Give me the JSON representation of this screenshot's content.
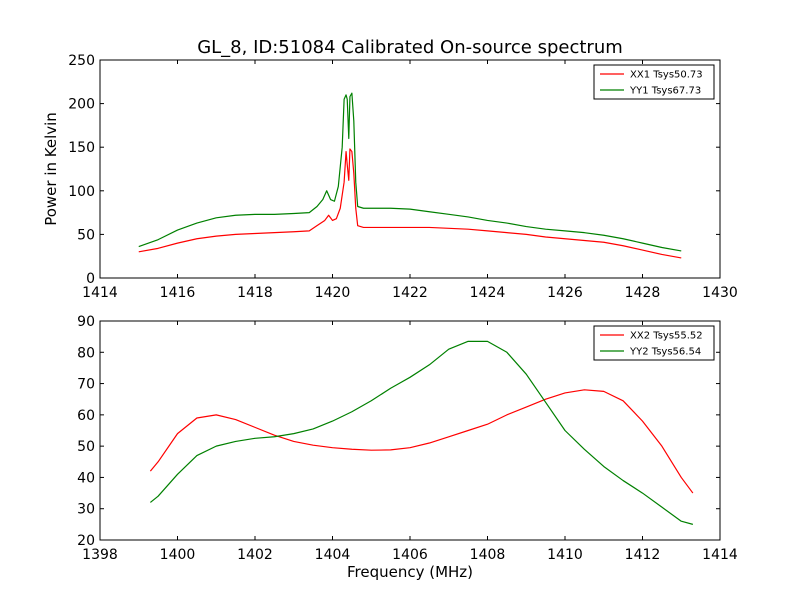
{
  "figure": {
    "title": "GL_8, ID:51084 Calibrated On-source spectrum",
    "xlabel": "Frequency (MHz)"
  },
  "chart_data": [
    {
      "type": "line",
      "title": "GL_8, ID:51084 Calibrated On-source spectrum",
      "xlabel": "",
      "ylabel": "Power in Kelvin",
      "xlim": [
        1414,
        1430
      ],
      "ylim": [
        0,
        250
      ],
      "xticks": [
        1414,
        1416,
        1418,
        1420,
        1422,
        1424,
        1426,
        1428,
        1430
      ],
      "yticks": [
        0,
        50,
        100,
        150,
        200,
        250
      ],
      "grid": false,
      "legend_position": "top-right",
      "series": [
        {
          "name": "XX1 Tsys50.73",
          "color": "#ff0000",
          "points": [
            [
              1415.0,
              30
            ],
            [
              1415.5,
              34
            ],
            [
              1416.0,
              40
            ],
            [
              1416.5,
              45
            ],
            [
              1417.0,
              48
            ],
            [
              1417.5,
              50
            ],
            [
              1418.0,
              51
            ],
            [
              1418.5,
              52
            ],
            [
              1419.0,
              53
            ],
            [
              1419.4,
              54
            ],
            [
              1419.6,
              60
            ],
            [
              1419.8,
              66
            ],
            [
              1419.9,
              72
            ],
            [
              1420.0,
              66
            ],
            [
              1420.1,
              68
            ],
            [
              1420.2,
              80
            ],
            [
              1420.3,
              110
            ],
            [
              1420.35,
              145
            ],
            [
              1420.38,
              130
            ],
            [
              1420.42,
              112
            ],
            [
              1420.45,
              148
            ],
            [
              1420.5,
              145
            ],
            [
              1420.55,
              120
            ],
            [
              1420.6,
              80
            ],
            [
              1420.65,
              60
            ],
            [
              1420.8,
              58
            ],
            [
              1421.0,
              58
            ],
            [
              1421.5,
              58
            ],
            [
              1422.0,
              58
            ],
            [
              1422.5,
              58
            ],
            [
              1423.0,
              57
            ],
            [
              1423.5,
              56
            ],
            [
              1424.0,
              54
            ],
            [
              1424.5,
              52
            ],
            [
              1425.0,
              50
            ],
            [
              1425.5,
              47
            ],
            [
              1426.0,
              45
            ],
            [
              1426.5,
              43
            ],
            [
              1427.0,
              41
            ],
            [
              1427.5,
              37
            ],
            [
              1428.0,
              32
            ],
            [
              1428.5,
              27
            ],
            [
              1429.0,
              23
            ]
          ]
        },
        {
          "name": "YY1 Tsys67.73",
          "color": "#008000",
          "points": [
            [
              1415.0,
              36
            ],
            [
              1415.5,
              44
            ],
            [
              1416.0,
              55
            ],
            [
              1416.5,
              63
            ],
            [
              1417.0,
              69
            ],
            [
              1417.5,
              72
            ],
            [
              1418.0,
              73
            ],
            [
              1418.5,
              73
            ],
            [
              1419.0,
              74
            ],
            [
              1419.4,
              75
            ],
            [
              1419.6,
              82
            ],
            [
              1419.75,
              90
            ],
            [
              1419.85,
              100
            ],
            [
              1419.95,
              90
            ],
            [
              1420.05,
              88
            ],
            [
              1420.15,
              105
            ],
            [
              1420.25,
              150
            ],
            [
              1420.3,
              205
            ],
            [
              1420.35,
              210
            ],
            [
              1420.38,
              205
            ],
            [
              1420.42,
              160
            ],
            [
              1420.45,
              208
            ],
            [
              1420.5,
              212
            ],
            [
              1420.55,
              180
            ],
            [
              1420.6,
              110
            ],
            [
              1420.65,
              82
            ],
            [
              1420.8,
              80
            ],
            [
              1421.0,
              80
            ],
            [
              1421.5,
              80
            ],
            [
              1422.0,
              79
            ],
            [
              1422.5,
              76
            ],
            [
              1423.0,
              73
            ],
            [
              1423.5,
              70
            ],
            [
              1424.0,
              66
            ],
            [
              1424.5,
              63
            ],
            [
              1425.0,
              59
            ],
            [
              1425.5,
              56
            ],
            [
              1426.0,
              54
            ],
            [
              1426.5,
              52
            ],
            [
              1427.0,
              49
            ],
            [
              1427.5,
              45
            ],
            [
              1428.0,
              40
            ],
            [
              1428.5,
              35
            ],
            [
              1429.0,
              31
            ]
          ]
        }
      ]
    },
    {
      "type": "line",
      "title": "",
      "xlabel": "Frequency (MHz)",
      "ylabel": "",
      "xlim": [
        1398,
        1414
      ],
      "ylim": [
        20,
        90
      ],
      "xticks": [
        1398,
        1400,
        1402,
        1404,
        1406,
        1408,
        1410,
        1412,
        1414
      ],
      "yticks": [
        20,
        30,
        40,
        50,
        60,
        70,
        80,
        90
      ],
      "grid": false,
      "legend_position": "top-right",
      "series": [
        {
          "name": "XX2 Tsys55.52",
          "color": "#ff0000",
          "points": [
            [
              1399.3,
              42
            ],
            [
              1399.5,
              45
            ],
            [
              1400.0,
              54
            ],
            [
              1400.5,
              59
            ],
            [
              1401.0,
              60
            ],
            [
              1401.5,
              58.5
            ],
            [
              1402.0,
              56
            ],
            [
              1402.5,
              53.5
            ],
            [
              1403.0,
              51.5
            ],
            [
              1403.5,
              50.3
            ],
            [
              1404.0,
              49.5
            ],
            [
              1404.5,
              49
            ],
            [
              1405.0,
              48.7
            ],
            [
              1405.5,
              48.8
            ],
            [
              1406.0,
              49.5
            ],
            [
              1406.5,
              51
            ],
            [
              1407.0,
              53
            ],
            [
              1407.5,
              55
            ],
            [
              1408.0,
              57
            ],
            [
              1408.5,
              60
            ],
            [
              1409.0,
              62.5
            ],
            [
              1409.5,
              65
            ],
            [
              1410.0,
              67
            ],
            [
              1410.5,
              68
            ],
            [
              1411.0,
              67.5
            ],
            [
              1411.5,
              64.5
            ],
            [
              1412.0,
              58
            ],
            [
              1412.5,
              50
            ],
            [
              1413.0,
              40
            ],
            [
              1413.3,
              35
            ]
          ]
        },
        {
          "name": "YY2 Tsys56.54",
          "color": "#008000",
          "points": [
            [
              1399.3,
              32
            ],
            [
              1399.5,
              34
            ],
            [
              1400.0,
              41
            ],
            [
              1400.5,
              47
            ],
            [
              1401.0,
              50
            ],
            [
              1401.5,
              51.5
            ],
            [
              1402.0,
              52.5
            ],
            [
              1402.5,
              53
            ],
            [
              1403.0,
              54
            ],
            [
              1403.5,
              55.5
            ],
            [
              1404.0,
              58
            ],
            [
              1404.5,
              61
            ],
            [
              1405.0,
              64.5
            ],
            [
              1405.5,
              68.5
            ],
            [
              1406.0,
              72
            ],
            [
              1406.5,
              76
            ],
            [
              1407.0,
              81
            ],
            [
              1407.5,
              83.5
            ],
            [
              1408.0,
              83.5
            ],
            [
              1408.5,
              80
            ],
            [
              1409.0,
              73
            ],
            [
              1409.5,
              64
            ],
            [
              1410.0,
              55
            ],
            [
              1410.5,
              49
            ],
            [
              1411.0,
              43.5
            ],
            [
              1411.5,
              39
            ],
            [
              1412.0,
              35
            ],
            [
              1412.5,
              30.5
            ],
            [
              1413.0,
              26
            ],
            [
              1413.3,
              25
            ]
          ]
        }
      ]
    }
  ]
}
